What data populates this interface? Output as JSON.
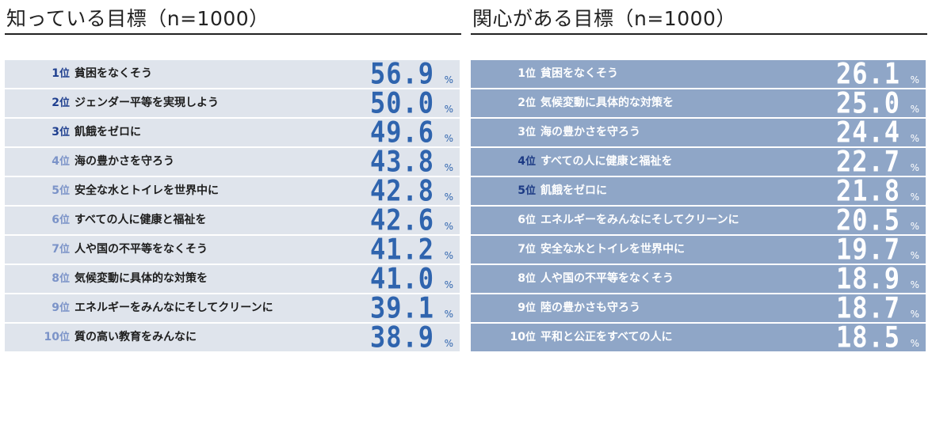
{
  "chart_data": [
    {
      "type": "table",
      "title": "知っている目標（n=1000）",
      "rank_suffix": "位",
      "unit": "%",
      "rows": [
        {
          "rank": 1,
          "label": "貧困をなくそう",
          "value": "56.9"
        },
        {
          "rank": 2,
          "label": "ジェンダー平等を実現しよう",
          "value": "50.0"
        },
        {
          "rank": 3,
          "label": "飢餓をゼロに",
          "value": "49.6"
        },
        {
          "rank": 4,
          "label": "海の豊かさを守ろう",
          "value": "43.8"
        },
        {
          "rank": 5,
          "label": "安全な水とトイレを世界中に",
          "value": "42.8"
        },
        {
          "rank": 6,
          "label": "すべての人に健康と福祉を",
          "value": "42.6"
        },
        {
          "rank": 7,
          "label": "人や国の不平等をなくそう",
          "value": "41.2"
        },
        {
          "rank": 8,
          "label": "気候変動に具体的な対策を",
          "value": "41.0"
        },
        {
          "rank": 9,
          "label": "エネルギーをみんなにそしてクリーンに",
          "value": "39.1"
        },
        {
          "rank": 10,
          "label": "質の高い教育をみんなに",
          "value": "38.9"
        }
      ]
    },
    {
      "type": "table",
      "title": "関心がある目標（n=1000）",
      "rank_suffix": "位",
      "unit": "%",
      "rows": [
        {
          "rank": 1,
          "label": "貧困をなくそう",
          "value": "26.1"
        },
        {
          "rank": 2,
          "label": "気候変動に具体的な対策を",
          "value": "25.0"
        },
        {
          "rank": 3,
          "label": "海の豊かさを守ろう",
          "value": "24.4"
        },
        {
          "rank": 4,
          "label": "すべての人に健康と福祉を",
          "value": "22.7"
        },
        {
          "rank": 5,
          "label": "飢餓をゼロに",
          "value": "21.8"
        },
        {
          "rank": 6,
          "label": "エネルギーをみんなにそしてクリーンに",
          "value": "20.5"
        },
        {
          "rank": 7,
          "label": "安全な水とトイレを世界中に",
          "value": "19.7"
        },
        {
          "rank": 8,
          "label": "人や国の不平等をなくそう",
          "value": "18.9"
        },
        {
          "rank": 9,
          "label": "陸の豊かさも守ろう",
          "value": "18.7"
        },
        {
          "rank": 10,
          "label": "平和と公正をすべての人に",
          "value": "18.5"
        }
      ]
    }
  ],
  "colors": {
    "left_row_bg": "#dfe4ec",
    "right_row_bg": "#8fa6c7",
    "value_blue": "#2f64ae",
    "left_rank_colors": [
      "#1f3f8f",
      "#1f3f8f",
      "#1f3f8f",
      "#7b93c8",
      "#7b93c8",
      "#7b93c8",
      "#7b93c8",
      "#7b93c8",
      "#7b93c8",
      "#7b93c8"
    ],
    "right_rank_colors": [
      "#ffffff",
      "#ffffff",
      "#ffffff",
      "#1c3a84",
      "#1c3a84",
      "#ffffff",
      "#ffffff",
      "#ffffff",
      "#ffffff",
      "#ffffff"
    ]
  }
}
